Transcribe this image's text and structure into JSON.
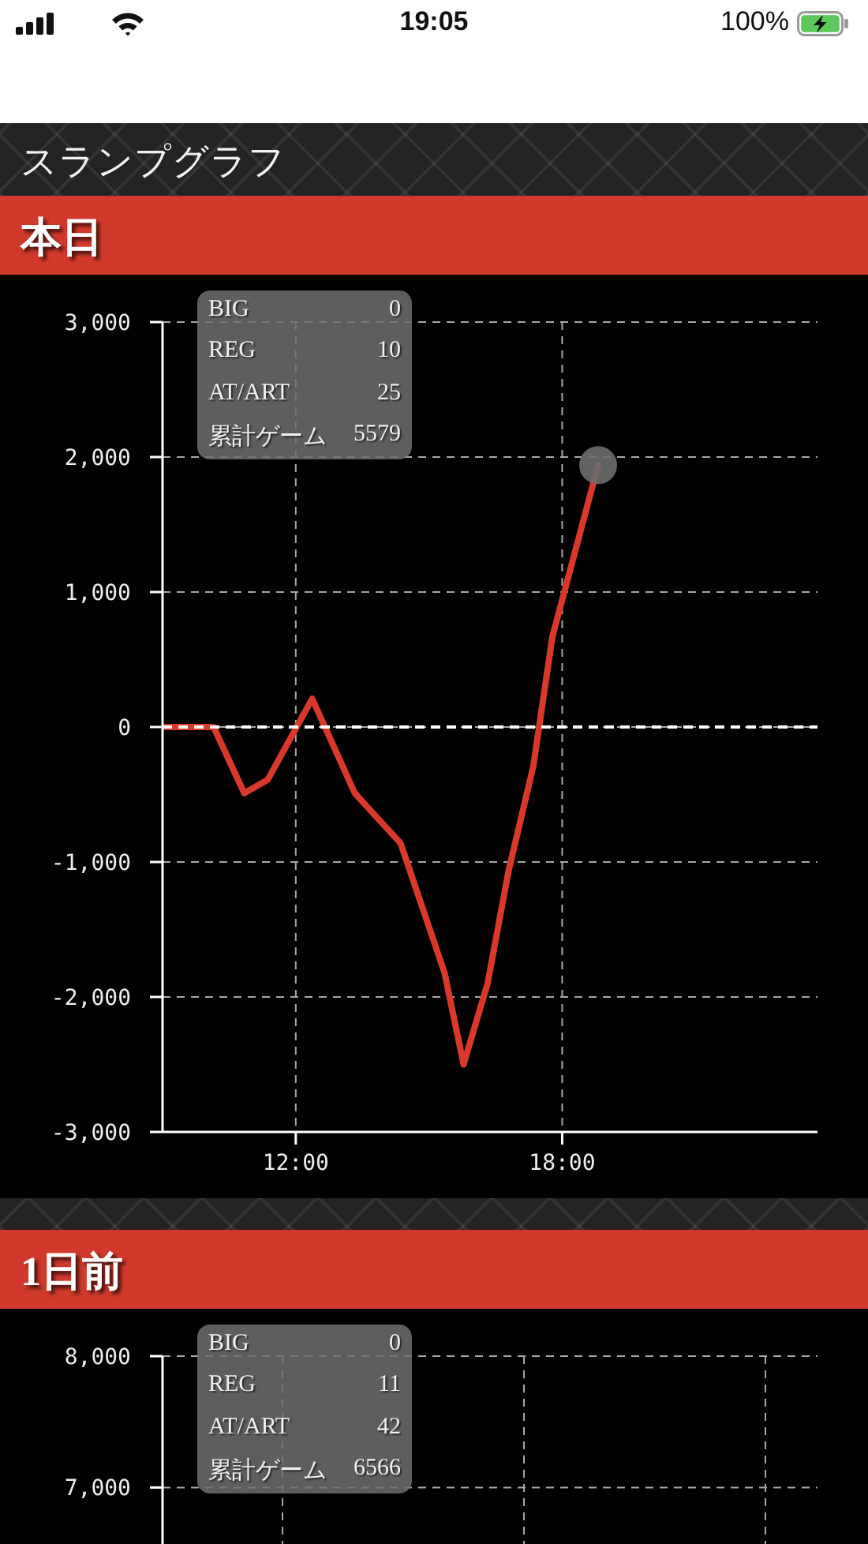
{
  "chart_data": [
    {
      "type": "other",
      "title": "スランプグラフ",
      "annotations": [
        "19:05",
        "100%"
      ]
    },
    {
      "type": "line",
      "title": "本日",
      "xlim": [
        9,
        23.75
      ],
      "xticks": [
        {
          "value": 12,
          "label": "12:00"
        },
        {
          "value": 18,
          "label": "18:00"
        }
      ],
      "ylim": [
        -3000,
        3000
      ],
      "yticks": [
        {
          "value": -3000,
          "label": "-3,000"
        },
        {
          "value": -2000,
          "label": "-2,000"
        },
        {
          "value": -1000,
          "label": "-1,000"
        },
        0,
        {
          "value": 1000,
          "label": "1,000"
        },
        {
          "value": 2000,
          "label": "2,000"
        },
        {
          "value": 3000,
          "label": "3,000"
        }
      ],
      "grid": true,
      "ref_lines": [
        {
          "axis": "y",
          "value": 0,
          "color": "#ffffff",
          "line_style": "dashed"
        }
      ],
      "annotations": [
        "BIG",
        "0",
        "REG",
        "10",
        "AT/ART",
        "25",
        "累計ゲーム",
        "5579"
      ],
      "series": [
        {
          "type": "scatter",
          "color": "#6e6e6e",
          "marker": "circle",
          "x": [
            18.81
          ],
          "values": [
            1940
          ]
        },
        {
          "type": "line",
          "color": "#d8392b",
          "x": [
            9,
            10.15,
            10.84,
            11.37,
            12.37,
            13.33,
            13.77,
            14.36,
            15.35,
            15.78,
            16.32,
            16.79,
            17.35,
            17.78,
            18.81
          ],
          "values": [
            0,
            0,
            -490,
            -390,
            210,
            -490,
            -650,
            -860,
            -1820,
            -2500,
            -1900,
            -1070,
            -290,
            670,
            1940
          ]
        }
      ]
    },
    {
      "type": "line",
      "title": "1日前",
      "categories": [
        null,
        null,
        null
      ],
      "values": [
        null,
        null,
        null
      ],
      "ylim": [
        6570,
        8000
      ],
      "yticks": [
        {
          "value": 7000,
          "label": "7,000"
        },
        {
          "value": 8000,
          "label": "8,000"
        }
      ],
      "grid": true,
      "tick_labels": "y",
      "annotations": [
        "BIG",
        "0",
        "REG",
        "11",
        "AT/ART",
        "42",
        "累計ゲーム",
        "6566"
      ]
    }
  ]
}
